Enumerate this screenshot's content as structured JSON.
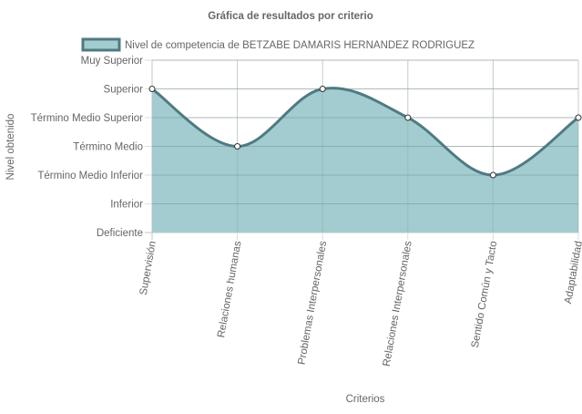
{
  "chart_data": {
    "type": "area",
    "title": "Gráfica de resultados por criterio",
    "xlabel": "Criterios",
    "ylabel": "Nivel obtenido",
    "levels": [
      "Deficiente",
      "Inferior",
      "Término Medio Inferior",
      "Término Medio",
      "Término Medio Superior",
      "Superior",
      "Muy Superior"
    ],
    "categories": [
      "Supervisión",
      "Relaciones humanas",
      "Problemas Interpersonales",
      "Relaciones Interpersonales",
      "Sentido Común y Tacto",
      "Adaptabilidad"
    ],
    "series": [
      {
        "name": "Nivel de competencia de BETZABE DAMARIS HERNANDEZ RODRIGUEZ",
        "values": [
          "Superior",
          "Término Medio",
          "Superior",
          "Término Medio Superior",
          "Término Medio Inferior",
          "Término Medio Superior"
        ],
        "fill_color": "#a2cccf",
        "line_color": "#4f7a82",
        "point_fill": "#ffffff"
      }
    ],
    "grid": true,
    "legend_position": "top"
  }
}
